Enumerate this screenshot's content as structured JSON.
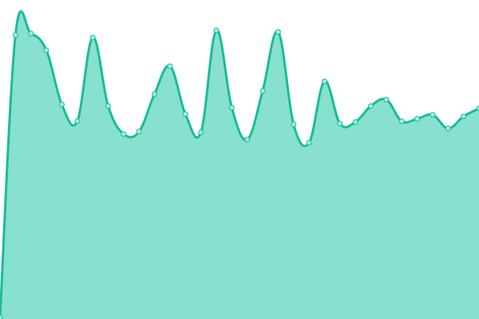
{
  "chart_data": {
    "type": "area",
    "title": "",
    "xlabel": "",
    "ylabel": "",
    "axes_visible": false,
    "grid": false,
    "legend": "none",
    "curve": "smooth",
    "ylim": [
      0,
      400
    ],
    "x": [
      0,
      1,
      2,
      3,
      4,
      5,
      6,
      7,
      8,
      9,
      10,
      11,
      12,
      13,
      14,
      15,
      16,
      17,
      18,
      19,
      20,
      21,
      22,
      23,
      24,
      25,
      26,
      27,
      28,
      29,
      30,
      31
    ],
    "values": [
      2,
      356,
      358,
      337,
      269,
      248,
      353,
      267,
      232,
      235,
      282,
      317,
      257,
      234,
      362,
      265,
      225,
      286,
      360,
      244,
      221,
      298,
      245,
      247,
      267,
      275,
      248,
      251,
      256,
      239,
      254,
      264
    ],
    "colors": {
      "line": "#1abc9c",
      "fill": "#88e0cf",
      "marker_fill": "#a8ecdf"
    }
  }
}
